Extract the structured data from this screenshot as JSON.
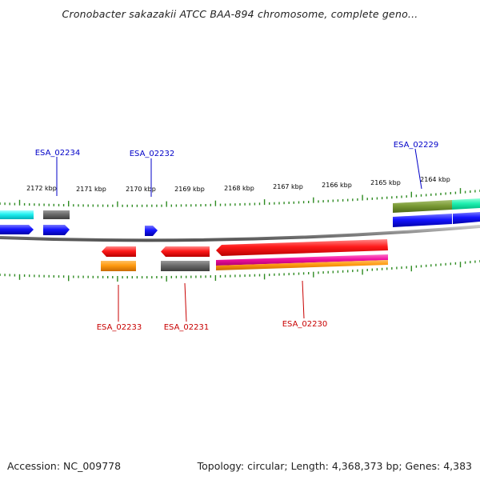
{
  "title": "Cronobacter sakazakii ATCC BAA-894 chromosome, complete geno...",
  "footer": {
    "accession": "Accession: NC_009778",
    "summary": "Topology: circular; Length: 4,368,373 bp; Genes: 4,383"
  },
  "colors": {
    "forward_label": "#0000c8",
    "reverse_label": "#c80000",
    "backbone": "#888888",
    "ticks": "#2e8b22"
  },
  "scale_labels": [
    "2172 kbp",
    "2171 kbp",
    "2170 kbp",
    "2169 kbp",
    "2168 kbp",
    "2167 kbp",
    "2166 kbp",
    "2165 kbp",
    "2164 kbp"
  ],
  "genes": {
    "forward": [
      "ESA_02234",
      "ESA_02232",
      "ESA_02229"
    ],
    "reverse": [
      "ESA_02233",
      "ESA_02231",
      "ESA_02230"
    ]
  }
}
